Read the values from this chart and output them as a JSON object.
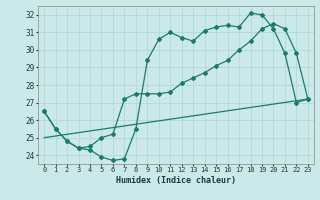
{
  "xlabel": "Humidex (Indice chaleur)",
  "xlim": [
    -0.5,
    23.5
  ],
  "ylim": [
    23.5,
    32.5
  ],
  "yticks": [
    24,
    25,
    26,
    27,
    28,
    29,
    30,
    31,
    32
  ],
  "xticks": [
    0,
    1,
    2,
    3,
    4,
    5,
    6,
    7,
    8,
    9,
    10,
    11,
    12,
    13,
    14,
    15,
    16,
    17,
    18,
    19,
    20,
    21,
    22,
    23
  ],
  "bg_color": "#cce9e9",
  "line_color": "#1a7a6e",
  "grid_color": "#b0d8d8",
  "line1_x": [
    0,
    1,
    2,
    3,
    4,
    5,
    6,
    7,
    8,
    9,
    10,
    11,
    12,
    13,
    14,
    15,
    16,
    17,
    18,
    19,
    20,
    21,
    22,
    23
  ],
  "line1_y": [
    26.5,
    25.5,
    24.8,
    24.4,
    24.3,
    23.9,
    23.7,
    23.8,
    25.5,
    29.4,
    30.6,
    31.0,
    30.7,
    30.5,
    31.1,
    31.3,
    31.4,
    31.3,
    32.1,
    32.0,
    31.2,
    29.8,
    27.0,
    27.2
  ],
  "line2_x": [
    0,
    1,
    2,
    3,
    4,
    5,
    6,
    7,
    8,
    9,
    10,
    11,
    12,
    13,
    14,
    15,
    16,
    17,
    18,
    19,
    20,
    21,
    22,
    23
  ],
  "line2_y": [
    26.5,
    25.5,
    24.8,
    24.4,
    24.5,
    25.0,
    25.2,
    27.2,
    27.5,
    27.5,
    27.5,
    27.6,
    28.1,
    28.4,
    28.7,
    29.1,
    29.4,
    30.0,
    30.5,
    31.2,
    31.5,
    31.2,
    29.8,
    27.2
  ],
  "line3_x": [
    0,
    23
  ],
  "line3_y": [
    25.0,
    27.2
  ]
}
